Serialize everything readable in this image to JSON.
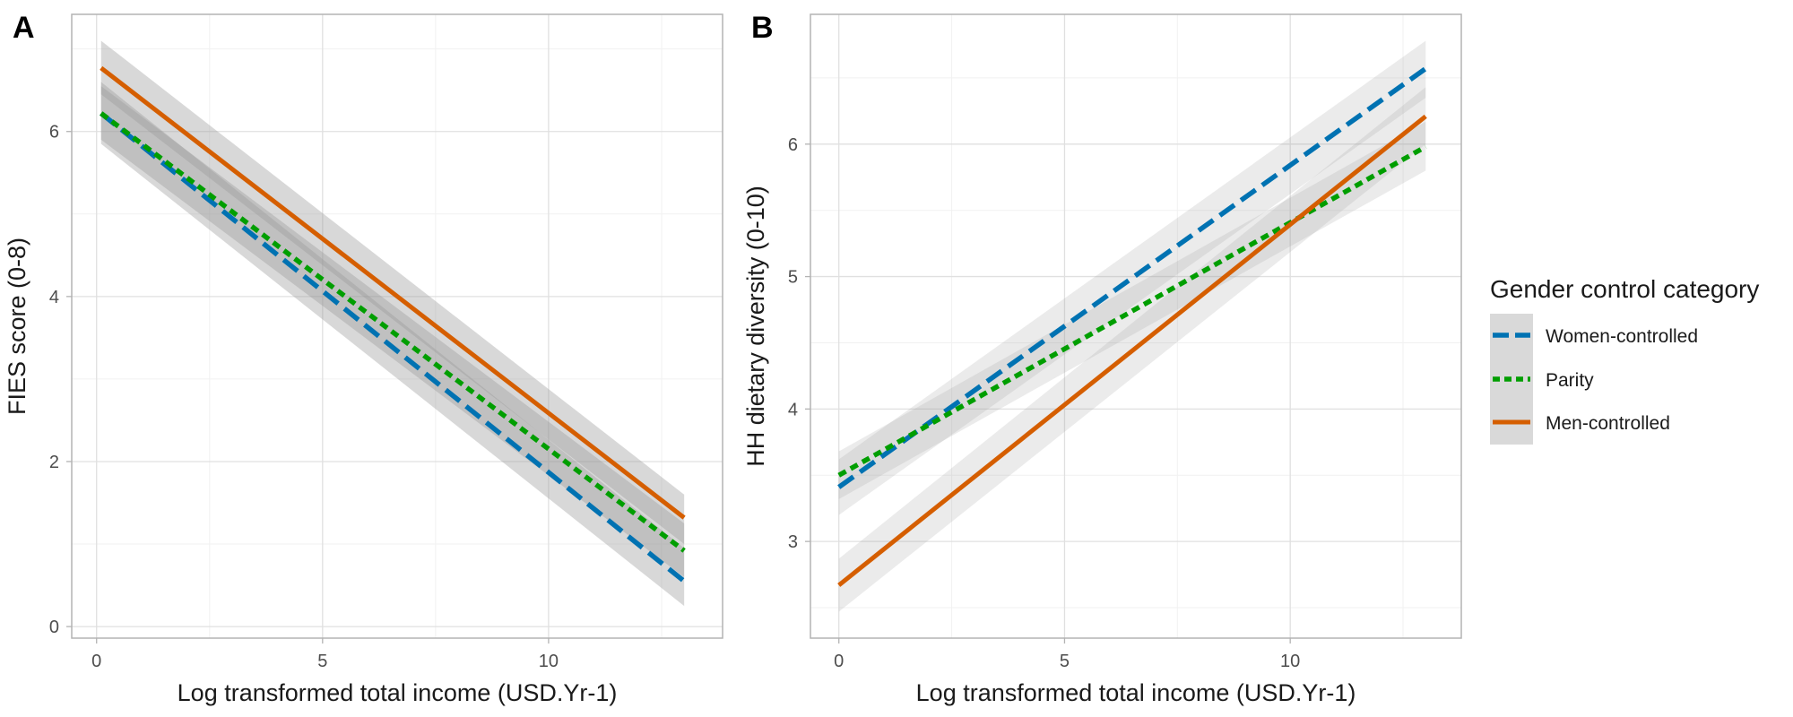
{
  "chart_data": [
    {
      "type": "line",
      "panel": "A",
      "xlabel": "Log transformed total income (USD.Yr-1)",
      "ylabel": "FIES score (0-8)",
      "xlim": [
        -0.55,
        13.85
      ],
      "ylim": [
        -0.14,
        7.42
      ],
      "xticks": [
        0,
        5,
        10
      ],
      "yticks": [
        0,
        2,
        4,
        6
      ],
      "grid": true,
      "series": [
        {
          "name": "Women-controlled",
          "color": "#0072B2",
          "dash": "long-dash",
          "x": [
            0.1,
            13.0
          ],
          "y": [
            6.22,
            0.55
          ],
          "ci_lower": [
            5.85,
            0.25
          ],
          "ci_upper": [
            6.6,
            0.95
          ]
        },
        {
          "name": "Parity",
          "color": "#009E00",
          "dash": "dotted",
          "x": [
            0.1,
            13.0
          ],
          "y": [
            6.22,
            0.92
          ],
          "ci_lower": [
            5.9,
            0.6
          ],
          "ci_upper": [
            6.55,
            1.25
          ]
        },
        {
          "name": "Men-controlled",
          "color": "#D55E00",
          "dash": "solid",
          "x": [
            0.1,
            13.0
          ],
          "y": [
            6.77,
            1.32
          ],
          "ci_lower": [
            6.45,
            1.0
          ],
          "ci_upper": [
            7.1,
            1.6
          ]
        }
      ]
    },
    {
      "type": "line",
      "panel": "B",
      "xlabel": "Log transformed total income (USD.Yr-1)",
      "ylabel": "HH dietary diversity (0-10)",
      "xlim": [
        -0.63,
        13.79
      ],
      "ylim": [
        2.27,
        6.98
      ],
      "xticks": [
        0,
        5,
        10
      ],
      "yticks": [
        3,
        4,
        5,
        6
      ],
      "grid": true,
      "series": [
        {
          "name": "Women-controlled",
          "color": "#0072B2",
          "dash": "long-dash",
          "x": [
            0.0,
            13.0
          ],
          "y": [
            3.41,
            6.57
          ],
          "ci_lower": [
            3.2,
            6.35
          ],
          "ci_upper": [
            3.62,
            6.78
          ]
        },
        {
          "name": "Parity",
          "color": "#009E00",
          "dash": "dotted",
          "x": [
            0.0,
            13.0
          ],
          "y": [
            3.5,
            5.98
          ],
          "ci_lower": [
            3.32,
            5.8
          ],
          "ci_upper": [
            3.68,
            6.17
          ]
        },
        {
          "name": "Men-controlled",
          "color": "#D55E00",
          "dash": "solid",
          "x": [
            0.0,
            13.0
          ],
          "y": [
            2.67,
            6.21
          ],
          "ci_lower": [
            2.47,
            6.0
          ],
          "ci_upper": [
            2.87,
            6.43
          ]
        }
      ]
    }
  ],
  "panels": [
    {
      "tag": "A"
    },
    {
      "tag": "B"
    }
  ],
  "legend": {
    "title": "Gender control category",
    "placement": "right",
    "items": [
      {
        "label": "Women-controlled",
        "color": "#0072B2",
        "dash": "long-dash"
      },
      {
        "label": "Parity",
        "color": "#009E00",
        "dash": "dotted"
      },
      {
        "label": "Men-controlled",
        "color": "#D55E00",
        "dash": "solid"
      }
    ]
  }
}
